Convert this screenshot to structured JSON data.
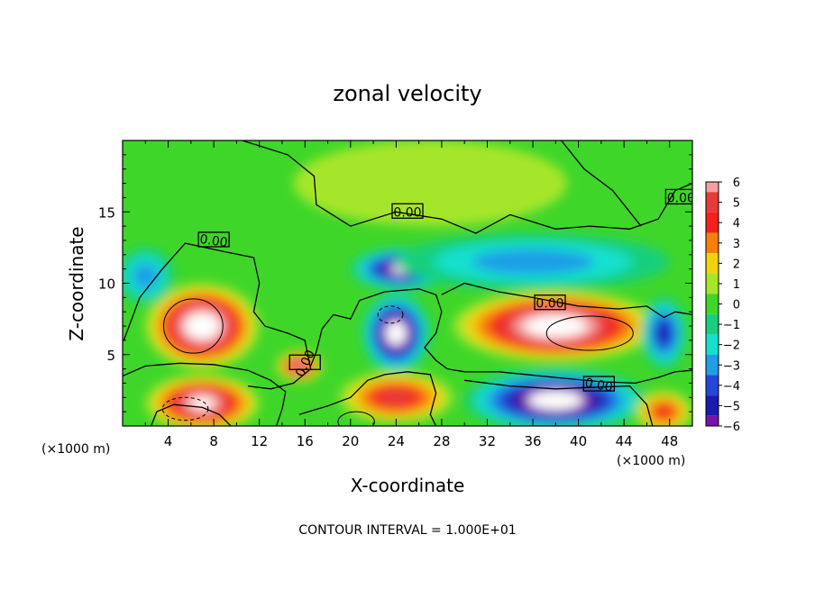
{
  "chart_data": {
    "type": "heatmap",
    "title": "zonal velocity",
    "xlabel": "X-coordinate",
    "ylabel": "Z-coordinate",
    "x_unit_left": "(×1000 m)",
    "x_unit_right": "(×1000 m)",
    "xlim": [
      0,
      50
    ],
    "ylim": [
      0,
      20
    ],
    "x_ticks": [
      4,
      8,
      12,
      16,
      20,
      24,
      28,
      32,
      36,
      40,
      44,
      48
    ],
    "y_ticks": [
      5,
      10,
      15
    ],
    "colorbar": {
      "levels": [
        6,
        5,
        4,
        3,
        2,
        1,
        0,
        -1,
        -2,
        -3,
        -4,
        -5,
        -6
      ],
      "colors": [
        "#f4a0a0",
        "#e83a3a",
        "#f5201c",
        "#f77e0c",
        "#f2d20a",
        "#a6e629",
        "#3fd62a",
        "#19cf7e",
        "#13e0cf",
        "#1f9ee6",
        "#2446d9",
        "#1a1ab0",
        "#7a12a8"
      ]
    },
    "contour_labels": [
      "0.00",
      "0.00",
      "0.00",
      "0.00",
      "0.00",
      "0.00"
    ],
    "regions": [
      {
        "cx": 7,
        "cy": 7,
        "rx": 5,
        "ry": 3,
        "value": 8
      },
      {
        "cx": 15.5,
        "cy": 4.2,
        "rx": 2,
        "ry": 1.1,
        "value": 6
      },
      {
        "cx": 7,
        "cy": 1.6,
        "rx": 5,
        "ry": 2,
        "value": 7
      },
      {
        "cx": 24,
        "cy": 6.5,
        "rx": 3,
        "ry": 2.8,
        "value": -8
      },
      {
        "cx": 24.5,
        "cy": 11,
        "rx": 4.5,
        "ry": 1.5,
        "value": -7
      },
      {
        "cx": 24,
        "cy": 2,
        "rx": 5,
        "ry": 1.8,
        "value": 5
      },
      {
        "cx": 38,
        "cy": 7,
        "rx": 9,
        "ry": 2.5,
        "value": 8
      },
      {
        "cx": 38,
        "cy": 1.8,
        "rx": 8,
        "ry": 2.2,
        "value": -8
      },
      {
        "cx": 47.5,
        "cy": 6.5,
        "rx": 2,
        "ry": 2.5,
        "value": -5
      },
      {
        "cx": 47.5,
        "cy": 1,
        "rx": 2.5,
        "ry": 1.5,
        "value": 4
      },
      {
        "cx": 36,
        "cy": 11.5,
        "rx": 12,
        "ry": 2,
        "value": -3
      },
      {
        "cx": 2,
        "cy": 10.5,
        "rx": 2.5,
        "ry": 2,
        "value": -3
      },
      {
        "cx": 27,
        "cy": 17,
        "rx": 12,
        "ry": 3,
        "value": 1
      }
    ],
    "footer": "CONTOUR INTERVAL = 1.000E+01"
  }
}
